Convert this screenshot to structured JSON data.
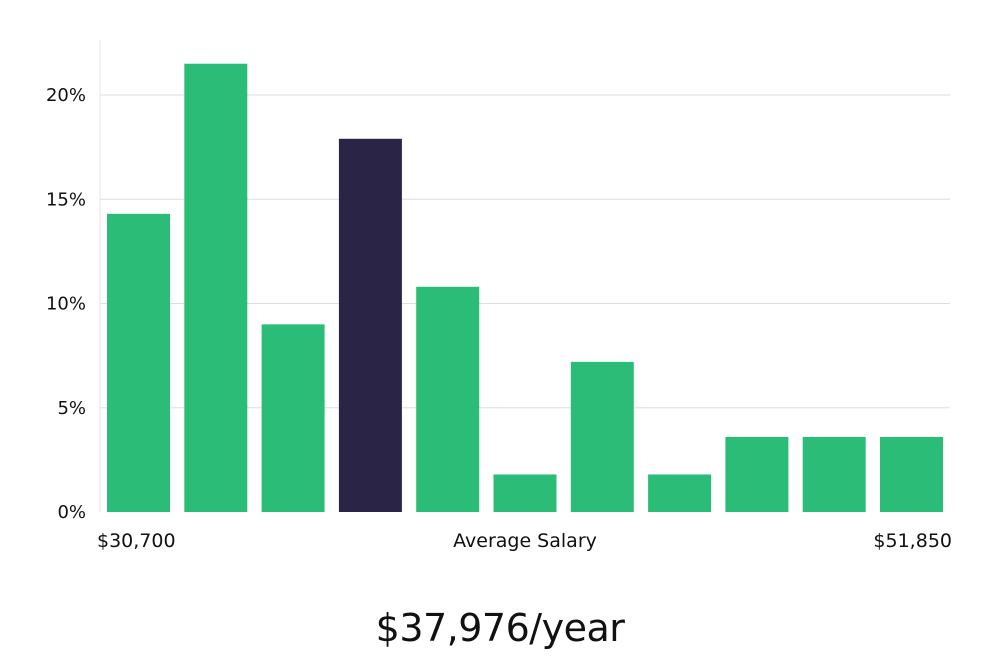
{
  "chart_data": {
    "type": "bar",
    "values": [
      14.3,
      21.5,
      9.0,
      17.9,
      10.8,
      1.8,
      7.2,
      1.8,
      3.6,
      3.6,
      3.6
    ],
    "highlight_index": 3,
    "ylim": [
      0,
      22.5
    ],
    "yticks": [
      0,
      5,
      10,
      15,
      20
    ],
    "ytick_labels": [
      "0%",
      "5%",
      "10%",
      "15%",
      "20%"
    ],
    "x_min_label": "$30,700",
    "x_max_label": "$51,850",
    "xlabel": "Average Salary",
    "grid": true,
    "colors": {
      "bar": "#2bbd77",
      "highlight": "#2a2547",
      "grid": "#dedede",
      "axis": "#e5e5e5"
    }
  },
  "summary": {
    "salary": "$37,976/year"
  }
}
